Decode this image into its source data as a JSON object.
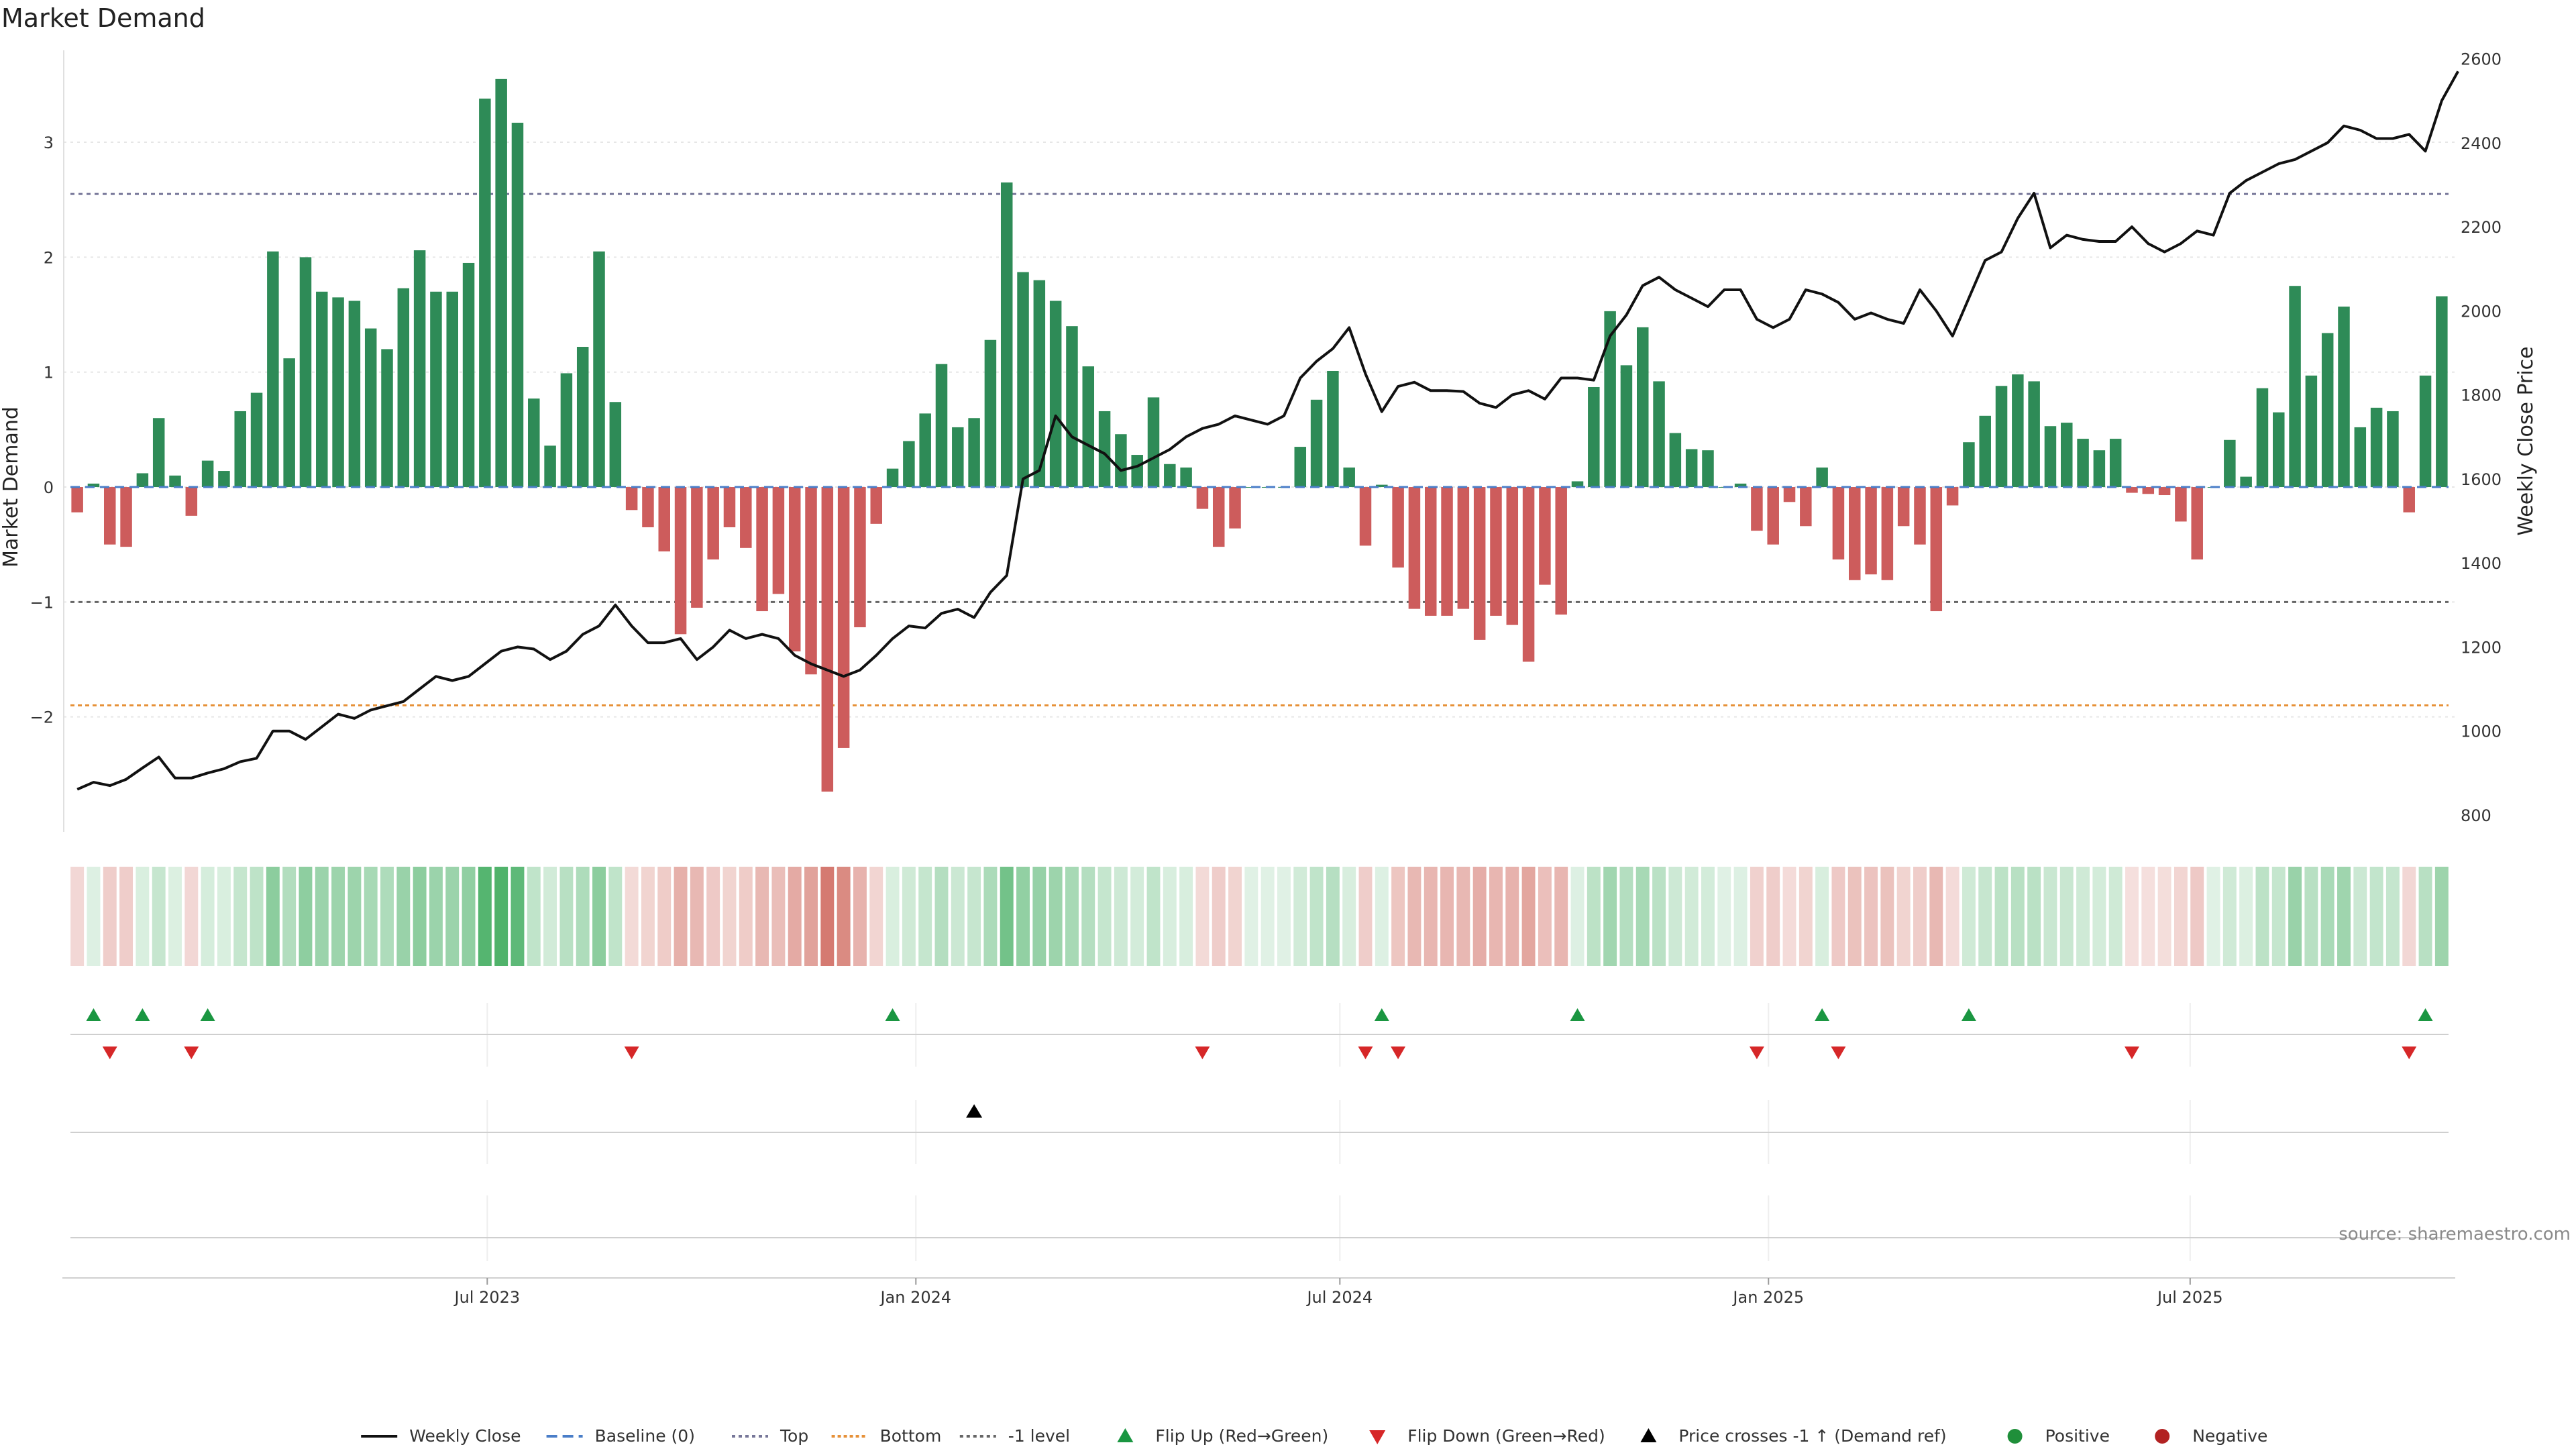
{
  "chart_data": {
    "type": "bar",
    "title": "Market Demand",
    "ylabel": "Market Demand",
    "y2label": "Weekly Close Price",
    "ylim": [
      -3,
      3.8
    ],
    "y2lim": [
      760,
      2620
    ],
    "yticks": [
      -2,
      -1,
      0,
      1,
      2,
      3
    ],
    "y2ticks": [
      800,
      1000,
      1200,
      1400,
      1600,
      1800,
      2000,
      2200,
      2400,
      2600
    ],
    "levels": {
      "top": 2.55,
      "minus_one": -1,
      "bottom": -1.9
    },
    "x_dates": {
      "start": "2023-01-06",
      "weeks": 144,
      "ticks": [
        {
          "label": "Jul 2023",
          "date": "2023-07-01"
        },
        {
          "label": "Jan 2024",
          "date": "2024-01-01"
        },
        {
          "label": "Jul 2024",
          "date": "2024-07-01"
        },
        {
          "label": "Jan 2025",
          "date": "2025-01-01"
        },
        {
          "label": "Jul 2025",
          "date": "2025-07-01"
        }
      ]
    },
    "series": [
      {
        "name": "Market Demand",
        "values": [
          -0.22,
          0.03,
          -0.5,
          -0.52,
          0.12,
          0.6,
          0.1,
          -0.25,
          0.23,
          0.14,
          0.66,
          0.82,
          2.05,
          1.12,
          2.0,
          1.7,
          1.65,
          1.62,
          1.38,
          1.2,
          1.73,
          2.06,
          1.7,
          1.7,
          1.95,
          3.38,
          3.55,
          3.17,
          0.77,
          0.36,
          0.99,
          1.22,
          2.05,
          0.74,
          -0.2,
          -0.35,
          -0.56,
          -1.28,
          -1.05,
          -0.63,
          -0.35,
          -0.53,
          -1.08,
          -0.93,
          -1.43,
          -1.63,
          -2.65,
          -2.27,
          -1.22,
          -0.32,
          0.16,
          0.4,
          0.64,
          1.07,
          0.52,
          0.6,
          1.28,
          2.65,
          1.87,
          1.8,
          1.62,
          1.4,
          1.05,
          0.66,
          0.46,
          0.28,
          0.78,
          0.2,
          0.17,
          -0.19,
          -0.52,
          -0.36,
          0.0,
          0.0,
          0.0,
          0.35,
          0.76,
          1.01,
          0.17,
          -0.51,
          0.02,
          -0.7,
          -1.06,
          -1.12,
          -1.12,
          -1.06,
          -1.33,
          -1.12,
          -1.2,
          -1.52,
          -0.85,
          -1.11,
          0.05,
          0.87,
          1.53,
          1.06,
          1.39,
          0.92,
          0.47,
          0.33,
          0.32,
          0.0,
          0.03,
          -0.38,
          -0.5,
          -0.13,
          -0.34,
          0.17,
          -0.63,
          -0.81,
          -0.76,
          -0.81,
          -0.34,
          -0.5,
          -1.08,
          -0.16,
          0.39,
          0.62,
          0.88,
          0.98,
          0.92,
          0.53,
          0.56,
          0.42,
          0.32,
          0.42,
          -0.05,
          -0.06,
          -0.07,
          -0.3,
          -0.63,
          0.0,
          0.41,
          0.09,
          0.86,
          0.65,
          1.75,
          0.97,
          1.34,
          1.57,
          0.52,
          0.69,
          0.66,
          -0.22,
          0.97,
          1.66
        ]
      },
      {
        "name": "Weekly Close",
        "values": [
          861,
          878,
          870,
          885,
          912,
          938,
          888,
          888,
          900,
          910,
          927,
          935,
          1000,
          1000,
          980,
          1010,
          1040,
          1030,
          1050,
          1060,
          1070,
          1100,
          1130,
          1120,
          1130,
          1160,
          1190,
          1200,
          1195,
          1170,
          1190,
          1230,
          1250,
          1300,
          1250,
          1210,
          1210,
          1220,
          1170,
          1200,
          1240,
          1220,
          1230,
          1220,
          1180,
          1160,
          1145,
          1130,
          1145,
          1180,
          1220,
          1250,
          1245,
          1280,
          1290,
          1270,
          1330,
          1370,
          1600,
          1620,
          1750,
          1700,
          1680,
          1660,
          1620,
          1630,
          1650,
          1670,
          1700,
          1720,
          1730,
          1750,
          1740,
          1730,
          1750,
          1840,
          1880,
          1910,
          1960,
          1850,
          1760,
          1820,
          1830,
          1810,
          1810,
          1808,
          1780,
          1770,
          1800,
          1810,
          1790,
          1840,
          1840,
          1835,
          1940,
          1990,
          2060,
          2080,
          2050,
          2030,
          2010,
          2050,
          2050,
          1980,
          1960,
          1980,
          2050,
          2040,
          2020,
          1980,
          1995,
          1980,
          1970,
          2050,
          2000,
          1940,
          2030,
          2120,
          2140,
          2220,
          2280,
          2150,
          2180,
          2170,
          2165,
          2165,
          2200,
          2160,
          2140,
          2160,
          2190,
          2180,
          2280,
          2310,
          2330,
          2350,
          2360,
          2380,
          2400,
          2440,
          2430,
          2410,
          2410,
          2420,
          2380,
          2500,
          2570
        ]
      }
    ],
    "crosses": [
      {
        "index": 55,
        "direction": "up"
      }
    ],
    "legend": [
      "Weekly Close",
      "Baseline (0)",
      "Top",
      "Bottom",
      "-1 level",
      "Flip Up (Red→Green)",
      "Flip Down (Green→Red)",
      "Price crosses -1 ↑ (Demand ref)",
      "Positive",
      "Negative"
    ],
    "legend_position": "bottom-center",
    "source": "source: sharemaestro.com"
  },
  "colors": {
    "positive": "#2e8b57",
    "negative": "#cd5c5c",
    "price": "#111111",
    "baseline": "#4a7ec8",
    "top": "#777799",
    "bottom": "#e69138",
    "minus_one": "#666666",
    "flip_up": "#1a9641",
    "flip_down": "#d62728",
    "cross": "#000000",
    "pos_dot": "#1f8f3a",
    "neg_dot": "#b22222",
    "grid": "#e6e6e6"
  }
}
